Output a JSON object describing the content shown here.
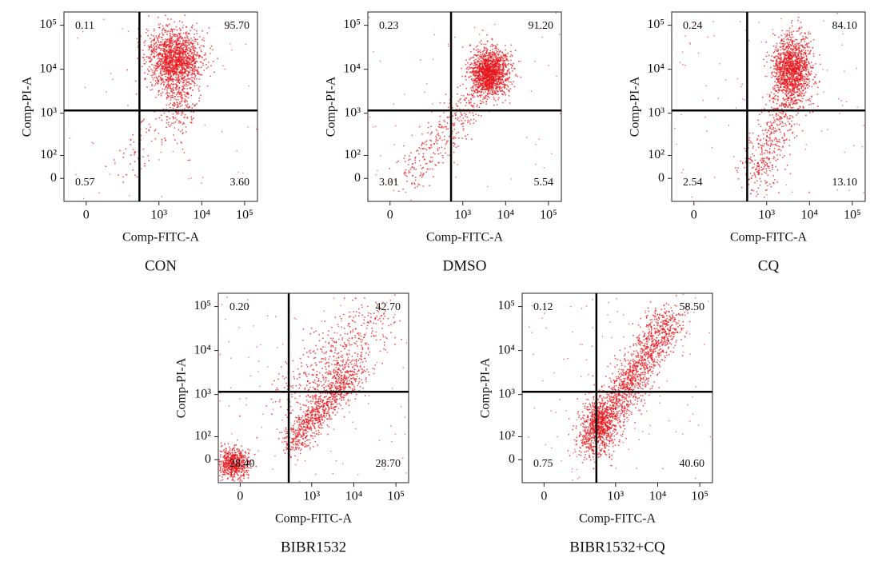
{
  "chart_data": [
    {
      "type": "quadrant-scatter",
      "title": "CON",
      "xlabel": "Comp-FITC-A",
      "ylabel": "Comp-PI-A",
      "xlim": [
        -60,
        200000
      ],
      "ylim": [
        -100,
        200000
      ],
      "xticks": [
        0,
        {
          "value": 1000,
          "label": "10³"
        },
        {
          "value": 10000,
          "label": "10⁴"
        },
        {
          "value": 100000,
          "label": "10⁵"
        }
      ],
      "yticks": [
        0,
        {
          "value": 100,
          "label": "10²"
        },
        {
          "value": 1000,
          "label": "10³"
        },
        {
          "value": 10000,
          "label": "10⁴"
        },
        {
          "value": 100000,
          "label": "10⁵"
        }
      ],
      "color": "#e8141a",
      "quadrants": {
        "values": [
          0.11,
          95.7,
          0.57,
          3.6
        ],
        "value_labels": [
          "0.11",
          "95.70",
          "0.57",
          "3.60"
        ]
      }
    },
    {
      "type": "quadrant-scatter",
      "title": "DMSO",
      "xlabel": "Comp-FITC-A",
      "ylabel": "Comp-PI-A",
      "xlim": [
        -60,
        200000
      ],
      "ylim": [
        -100,
        200000
      ],
      "xticks": [
        0,
        {
          "value": 1000,
          "label": "10³"
        },
        {
          "value": 10000,
          "label": "10⁴"
        },
        {
          "value": 100000,
          "label": "10⁵"
        }
      ],
      "yticks": [
        0,
        {
          "value": 100,
          "label": "10²"
        },
        {
          "value": 1000,
          "label": "10³"
        },
        {
          "value": 10000,
          "label": "10⁴"
        },
        {
          "value": 100000,
          "label": "10⁵"
        }
      ],
      "color": "#e8141a",
      "quadrants": {
        "values": [
          0.23,
          91.2,
          3.01,
          5.54
        ],
        "value_labels": [
          "0.23",
          "91.20",
          "3.01",
          "5.54"
        ]
      }
    },
    {
      "type": "quadrant-scatter",
      "title": "CQ",
      "xlabel": "Comp-FITC-A",
      "ylabel": "Comp-PI-A",
      "xlim": [
        -60,
        200000
      ],
      "ylim": [
        -100,
        200000
      ],
      "xticks": [
        0,
        {
          "value": 1000,
          "label": "10³"
        },
        {
          "value": 10000,
          "label": "10⁴"
        },
        {
          "value": 100000,
          "label": "10⁵"
        }
      ],
      "yticks": [
        0,
        {
          "value": 100,
          "label": "10²"
        },
        {
          "value": 1000,
          "label": "10³"
        },
        {
          "value": 10000,
          "label": "10⁴"
        },
        {
          "value": 100000,
          "label": "10⁵"
        }
      ],
      "color": "#e8141a",
      "quadrants": {
        "values": [
          0.24,
          84.1,
          2.54,
          13.1
        ],
        "value_labels": [
          "0.24",
          "84.10",
          "2.54",
          "13.10"
        ]
      }
    },
    {
      "type": "quadrant-scatter",
      "title": "BIBR1532",
      "xlabel": "Comp-FITC-A",
      "ylabel": "Comp-PI-A",
      "xlim": [
        -60,
        200000
      ],
      "ylim": [
        -100,
        200000
      ],
      "xticks": [
        0,
        {
          "value": 1000,
          "label": "10³"
        },
        {
          "value": 10000,
          "label": "10⁴"
        },
        {
          "value": 100000,
          "label": "10⁵"
        }
      ],
      "yticks": [
        0,
        {
          "value": 100,
          "label": "10²"
        },
        {
          "value": 1000,
          "label": "10³"
        },
        {
          "value": 10000,
          "label": "10⁴"
        },
        {
          "value": 100000,
          "label": "10⁵"
        }
      ],
      "color": "#e8141a",
      "quadrants": {
        "values": [
          0.2,
          42.7,
          28.4,
          28.7
        ],
        "value_labels": [
          "0.20",
          "42.70",
          "28.40",
          "28.70"
        ]
      }
    },
    {
      "type": "quadrant-scatter",
      "title": "BIBR1532+CQ",
      "xlabel": "Comp-FITC-A",
      "ylabel": "Comp-PI-A",
      "xlim": [
        -60,
        200000
      ],
      "ylim": [
        -100,
        200000
      ],
      "xticks": [
        0,
        {
          "value": 1000,
          "label": "10³"
        },
        {
          "value": 10000,
          "label": "10⁴"
        },
        {
          "value": 100000,
          "label": "10⁵"
        }
      ],
      "yticks": [
        0,
        {
          "value": 100,
          "label": "10²"
        },
        {
          "value": 1000,
          "label": "10³"
        },
        {
          "value": 10000,
          "label": "10⁴"
        },
        {
          "value": 100000,
          "label": "10⁵"
        }
      ],
      "color": "#e8141a",
      "quadrants": {
        "values": [
          0.12,
          58.5,
          0.75,
          40.6
        ],
        "value_labels": [
          "0.12",
          "58.50",
          "0.75",
          "40.60"
        ]
      }
    }
  ]
}
